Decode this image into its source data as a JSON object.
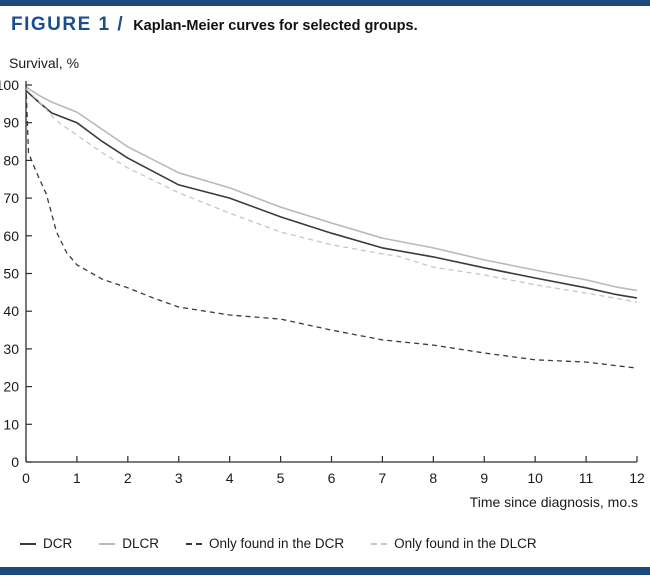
{
  "page": {
    "figure_label": "FIGURE 1 /",
    "figure_title": "Kaplan-Meier curves for selected groups."
  },
  "colors": {
    "accent_navy": "#1d4a7d",
    "title_navy": "#1a4e8c",
    "axis": "#2e2e2e",
    "dark_line": "#3a3a3a",
    "gray_line": "#b9b9b9",
    "light_dashed_line": "#c6c6c6"
  },
  "chart_data": {
    "type": "line",
    "title": "Kaplan-Meier curves for selected groups.",
    "xlabel": "Time since diagnosis, mo.s",
    "ylabel": "Survival, %",
    "xlim": [
      0,
      12
    ],
    "ylim": [
      0,
      100
    ],
    "x_ticks": [
      0,
      1,
      2,
      3,
      4,
      5,
      6,
      7,
      8,
      9,
      10,
      11,
      12
    ],
    "y_ticks": [
      0,
      10,
      20,
      30,
      40,
      50,
      60,
      70,
      80,
      90,
      100
    ],
    "grid": false,
    "legend_position": "bottom",
    "series": [
      {
        "name": "DCR",
        "style": "solid",
        "color": "#3a3a3a",
        "x": [
          0,
          0.25,
          0.5,
          1,
          1.5,
          2,
          3,
          4,
          5,
          6,
          7,
          8,
          9,
          10,
          11,
          11.6,
          12
        ],
        "y": [
          98.5,
          95.5,
          92.6,
          90,
          85,
          80.6,
          73.5,
          70,
          65,
          60.7,
          56.8,
          54.4,
          51.5,
          48.8,
          46.2,
          44.4,
          43.5
        ]
      },
      {
        "name": "DLCR",
        "style": "solid",
        "color": "#b9b9b9",
        "x": [
          0,
          0.25,
          0.5,
          1,
          1.5,
          2,
          3,
          4,
          5,
          6,
          7,
          8,
          9,
          10,
          11,
          11.6,
          12
        ],
        "y": [
          99.5,
          97.3,
          95.5,
          92.8,
          88.2,
          83.6,
          76.7,
          72.7,
          67.6,
          63.4,
          59.4,
          56.8,
          53.6,
          50.9,
          48.3,
          46.4,
          45.5
        ]
      },
      {
        "name": "Only found in the DCR",
        "style": "dashed",
        "color": "#3a3a3a",
        "x": [
          0,
          0.05,
          0.2,
          0.4,
          0.6,
          0.8,
          1,
          1.5,
          2,
          2.5,
          3,
          4,
          5,
          6,
          7,
          8,
          9,
          10,
          11,
          12
        ],
        "y": [
          100,
          82,
          77,
          71,
          61,
          55.5,
          52.3,
          48.5,
          46.2,
          43.5,
          41.1,
          39,
          37.9,
          35,
          32.4,
          31,
          28.9,
          27.1,
          26.5,
          24.9
        ]
      },
      {
        "name": "Only found in the DLCR",
        "style": "dashed",
        "color": "#c6c6c6",
        "x": [
          0,
          0.3,
          0.6,
          1,
          1.5,
          2,
          3,
          4,
          5,
          6,
          7,
          7.3,
          8,
          9,
          10,
          11,
          11.6,
          12
        ],
        "y": [
          99,
          95,
          90.5,
          86.7,
          82,
          78,
          71.4,
          66,
          61,
          57.6,
          55.2,
          54.6,
          51.7,
          49.6,
          47,
          44.8,
          43.4,
          42.4
        ]
      }
    ]
  }
}
